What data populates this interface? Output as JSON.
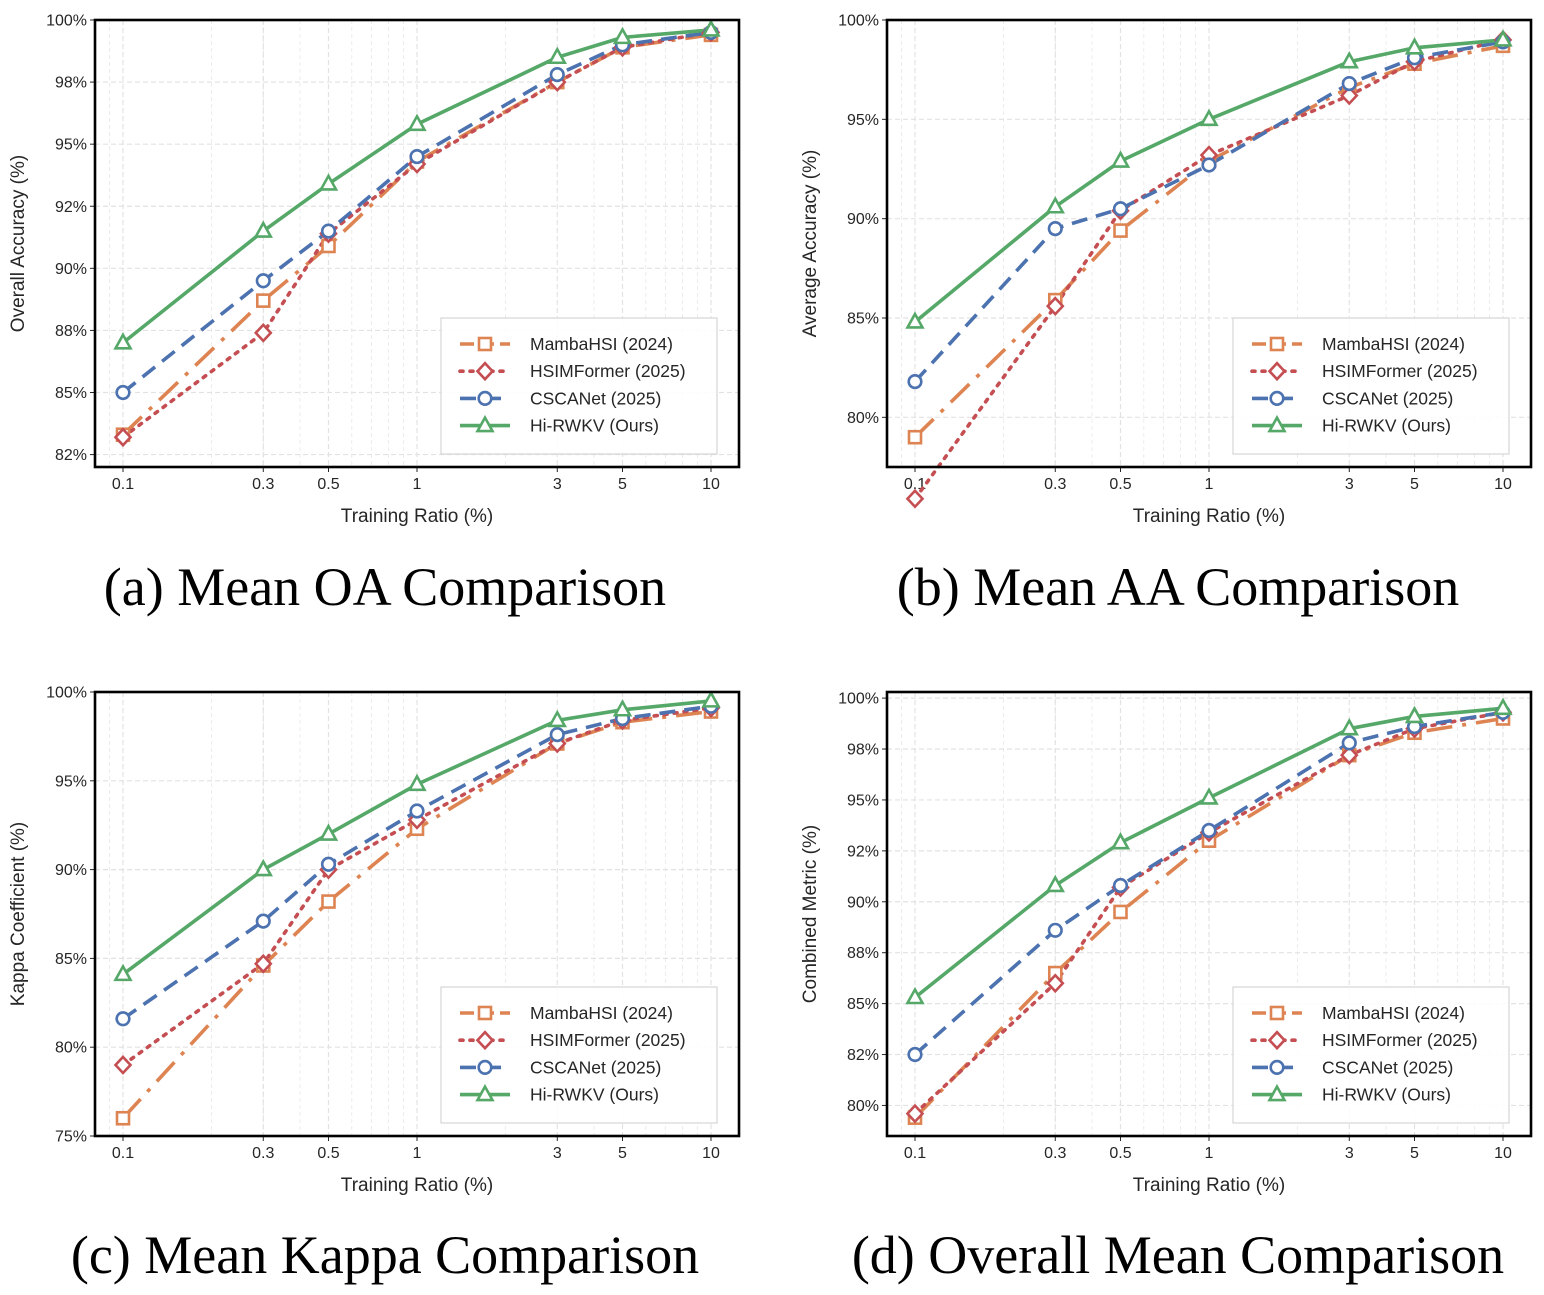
{
  "chart_data": [
    {
      "type": "line",
      "caption": "(a) Mean OA Comparison",
      "xlabel": "Training Ratio (%)",
      "ylabel": "Overall Accuracy (%)",
      "x_scale": "log",
      "x": [
        0.1,
        0.3,
        0.5,
        1,
        3,
        5,
        10
      ],
      "x_tick_labels": [
        "0.1",
        "0.3",
        "0.5",
        "1",
        "3",
        "5",
        "10"
      ],
      "ylim": [
        82.0,
        100.0
      ],
      "y_ticks": [
        82.5,
        85.0,
        87.5,
        90.0,
        92.5,
        95.0,
        97.5,
        100.0
      ],
      "y_tick_labels": [
        "82%",
        "85%",
        "88%",
        "90%",
        "92%",
        "95%",
        "98%",
        "100%"
      ],
      "grid": true,
      "legend": "lower-right",
      "series": [
        {
          "name": "MambaHSI (2024)",
          "values": [
            83.3,
            88.7,
            90.9,
            94.3,
            97.5,
            98.9,
            99.4
          ]
        },
        {
          "name": "HSIMFormer (2025)",
          "values": [
            83.2,
            87.4,
            91.4,
            94.2,
            97.5,
            98.9,
            99.5
          ]
        },
        {
          "name": "CSCANet (2025)",
          "values": [
            85.0,
            89.5,
            91.5,
            94.5,
            97.8,
            99.0,
            99.5
          ]
        },
        {
          "name": "Hi-RWKV (Ours)",
          "values": [
            87.0,
            91.5,
            93.4,
            95.8,
            98.5,
            99.3,
            99.6
          ]
        }
      ]
    },
    {
      "type": "line",
      "caption": "(b) Mean AA Comparison",
      "xlabel": "Training Ratio (%)",
      "ylabel": "Average Accuracy (%)",
      "x_scale": "log",
      "x": [
        0.1,
        0.3,
        0.5,
        1,
        3,
        5,
        10
      ],
      "x_tick_labels": [
        "0.1",
        "0.3",
        "0.5",
        "1",
        "3",
        "5",
        "10"
      ],
      "ylim": [
        77.5,
        100.0
      ],
      "y_ticks": [
        80,
        85,
        90,
        95,
        100
      ],
      "y_tick_labels": [
        "80%",
        "85%",
        "90%",
        "95%",
        "100%"
      ],
      "grid": true,
      "legend": "lower-right",
      "series": [
        {
          "name": "MambaHSI (2024)",
          "values": [
            79.0,
            85.9,
            89.4,
            92.9,
            96.6,
            97.8,
            98.7
          ]
        },
        {
          "name": "HSIMFormer (2025)",
          "values": [
            75.9,
            85.6,
            90.4,
            93.2,
            96.2,
            97.9,
            99.0
          ]
        },
        {
          "name": "CSCANet (2025)",
          "values": [
            81.8,
            89.5,
            90.5,
            92.7,
            96.8,
            98.1,
            98.9
          ]
        },
        {
          "name": "Hi-RWKV (Ours)",
          "values": [
            84.8,
            90.6,
            92.9,
            95.0,
            97.9,
            98.6,
            99.0
          ]
        }
      ]
    },
    {
      "type": "line",
      "caption": "(c) Mean Kappa Comparison",
      "xlabel": "Training Ratio (%)",
      "ylabel": "Kappa Coefficient (%)",
      "x_scale": "log",
      "x": [
        0.1,
        0.3,
        0.5,
        1,
        3,
        5,
        10
      ],
      "x_tick_labels": [
        "0.1",
        "0.3",
        "0.5",
        "1",
        "3",
        "5",
        "10"
      ],
      "ylim": [
        75.0,
        100.0
      ],
      "y_ticks": [
        75,
        80,
        85,
        90,
        95,
        100
      ],
      "y_tick_labels": [
        "75%",
        "80%",
        "85%",
        "90%",
        "95%",
        "100%"
      ],
      "grid": true,
      "legend": "lower-right",
      "series": [
        {
          "name": "MambaHSI (2024)",
          "values": [
            76.0,
            84.6,
            88.2,
            92.3,
            97.1,
            98.3,
            98.9
          ]
        },
        {
          "name": "HSIMFormer (2025)",
          "values": [
            79.0,
            84.7,
            90.0,
            92.8,
            97.1,
            98.4,
            99.1
          ]
        },
        {
          "name": "CSCANet (2025)",
          "values": [
            81.6,
            87.1,
            90.3,
            93.3,
            97.6,
            98.5,
            99.2
          ]
        },
        {
          "name": "Hi-RWKV (Ours)",
          "values": [
            84.1,
            90.0,
            92.0,
            94.8,
            98.4,
            99.0,
            99.5
          ]
        }
      ]
    },
    {
      "type": "line",
      "caption": "(d) Overall Mean Comparison",
      "xlabel": "Training Ratio (%)",
      "ylabel": "Combined Metric (%)",
      "x_scale": "log",
      "x": [
        0.1,
        0.3,
        0.5,
        1,
        3,
        5,
        10
      ],
      "x_tick_labels": [
        "0.1",
        "0.3",
        "0.5",
        "1",
        "3",
        "5",
        "10"
      ],
      "ylim": [
        78.5,
        100.3
      ],
      "y_ticks": [
        80.0,
        82.5,
        85.0,
        87.5,
        90.0,
        92.5,
        95.0,
        97.5,
        100.0
      ],
      "y_tick_labels": [
        "80%",
        "82%",
        "85%",
        "88%",
        "90%",
        "92%",
        "95%",
        "98%",
        "100%"
      ],
      "grid": true,
      "legend": "lower-right",
      "series": [
        {
          "name": "MambaHSI (2024)",
          "values": [
            79.4,
            86.5,
            89.5,
            93.0,
            97.2,
            98.3,
            99.0
          ]
        },
        {
          "name": "HSIMFormer (2025)",
          "values": [
            79.6,
            86.0,
            90.7,
            93.4,
            97.2,
            98.5,
            99.3
          ]
        },
        {
          "name": "CSCANet (2025)",
          "values": [
            82.5,
            88.6,
            90.8,
            93.5,
            97.8,
            98.6,
            99.3
          ]
        },
        {
          "name": "Hi-RWKV (Ours)",
          "values": [
            85.3,
            90.8,
            92.9,
            95.1,
            98.5,
            99.1,
            99.5
          ]
        }
      ]
    }
  ],
  "series_style": [
    {
      "color": "#dd8452",
      "marker": "square",
      "dash": "26 10 4 10"
    },
    {
      "color": "#c44e52",
      "marker": "diamond",
      "dash": "3 7"
    },
    {
      "color": "#4c72b0",
      "marker": "circle",
      "dash": "16 9"
    },
    {
      "color": "#55a868",
      "marker": "triangle",
      "dash": ""
    }
  ]
}
